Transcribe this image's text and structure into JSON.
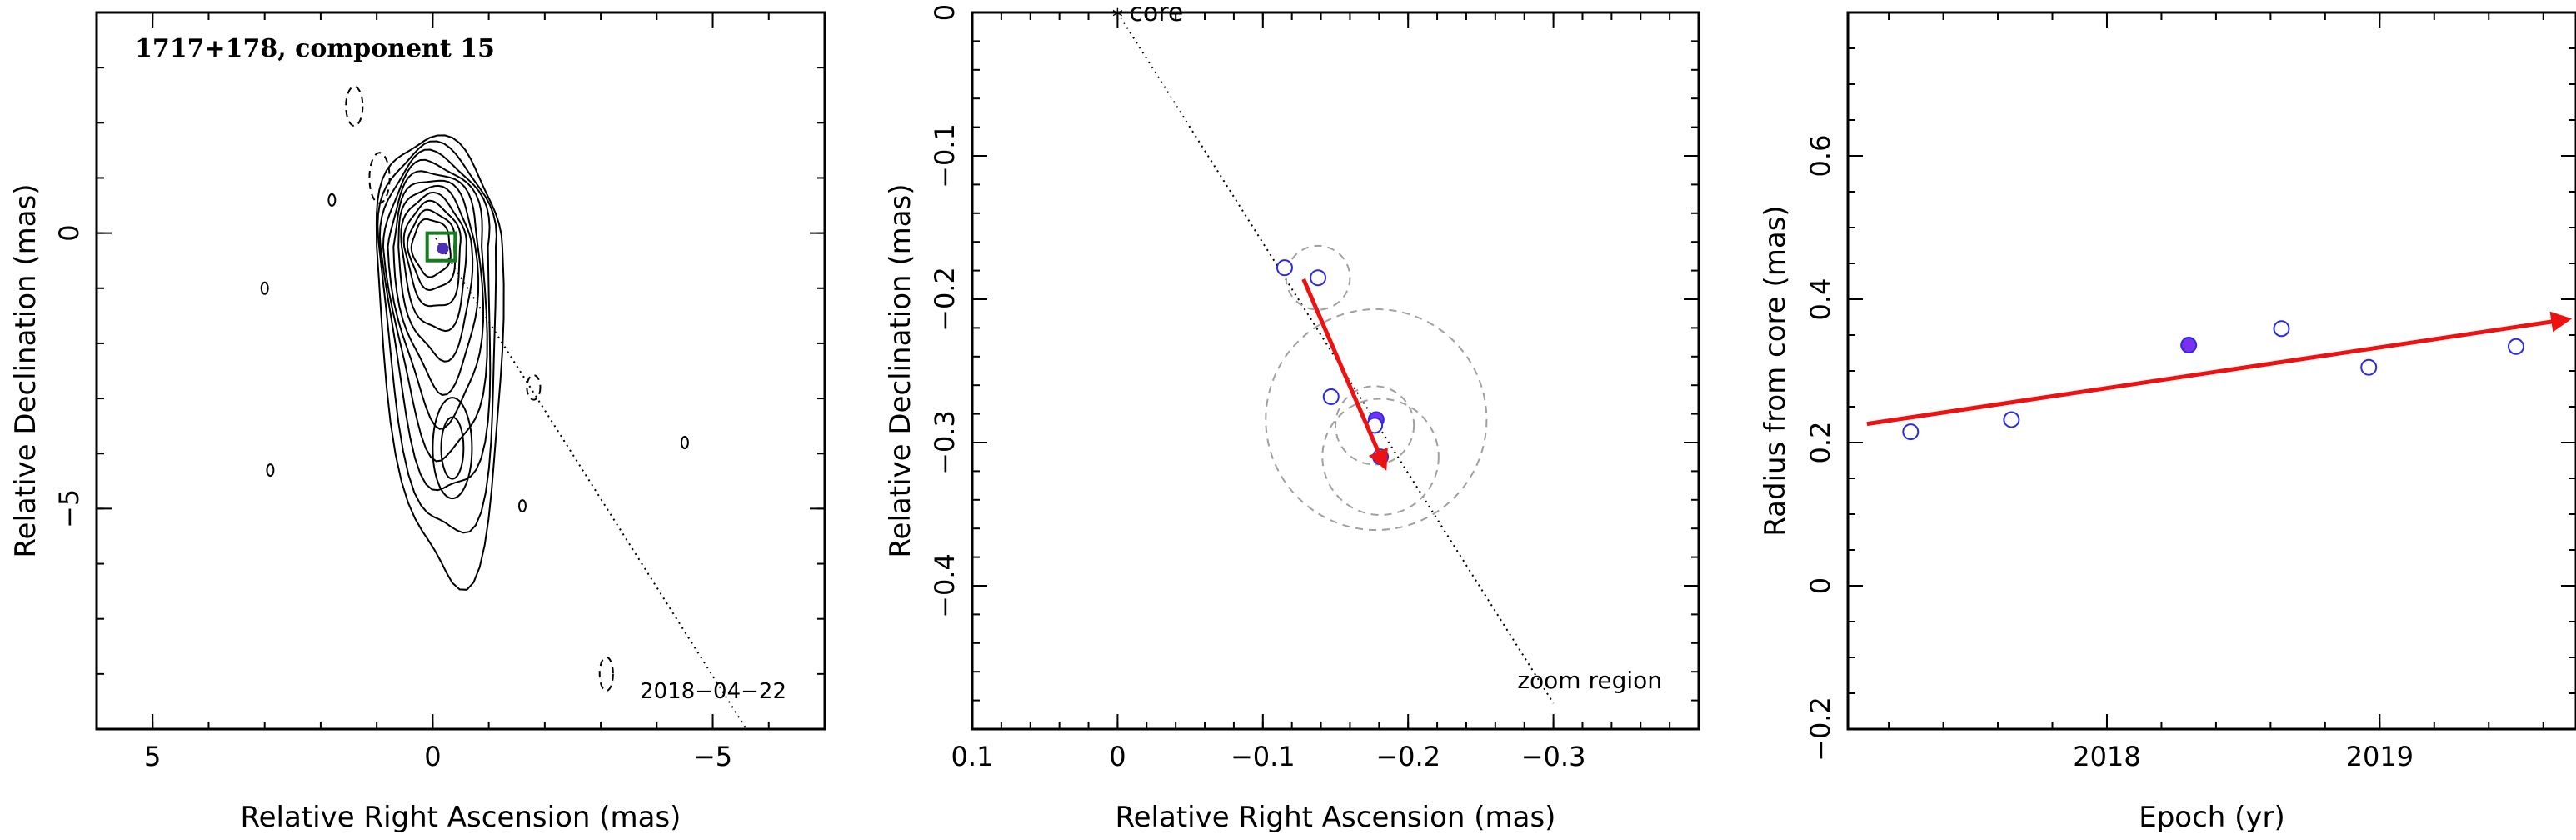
{
  "chart_data": [
    {
      "type": "contour",
      "title": "1717+178, component 15",
      "xlabel": "Relative Right Ascension (mas)",
      "ylabel": "Relative Declination (mas)",
      "xlim": [
        6,
        -7
      ],
      "ylim": [
        -9,
        4
      ],
      "xticks": [
        5,
        0,
        -5
      ],
      "yticks": [
        0,
        -5
      ],
      "xtick_labels": [
        "5",
        "0",
        "−5"
      ],
      "ytick_labels": [
        "0",
        "−5"
      ],
      "date_label": "2018−04−22",
      "component_marker": {
        "x": -0.18,
        "y": -0.28
      },
      "zoom_box": {
        "x": [
          -0.4,
          0.1
        ],
        "y": [
          -0.5,
          0.0
        ]
      },
      "trajectory_line": {
        "from": [
          0,
          0
        ],
        "to": [
          -5.6,
          -9
        ]
      },
      "colors": {
        "contour": "#000000",
        "box": "#137c1c",
        "marker": "#4b2fb8"
      }
    },
    {
      "type": "scatter",
      "xlabel": "Relative Right Ascension (mas)",
      "ylabel": "Relative Declination (mas)",
      "xlim": [
        0.1,
        -0.4
      ],
      "ylim": [
        -0.5,
        0.0
      ],
      "xticks": [
        0.1,
        0,
        -0.1,
        -0.2,
        -0.3
      ],
      "xtick_labels": [
        "0.1",
        "0",
        "−0.1",
        "−0.2",
        "−0.3"
      ],
      "yticks": [
        0,
        -0.1,
        -0.2,
        -0.3,
        -0.4
      ],
      "ytick_labels": [
        "0",
        "−0.1",
        "−0.2",
        "−0.3",
        "−0.4"
      ],
      "core_label": "core",
      "region_label": "zoom region",
      "points": [
        {
          "x": -0.115,
          "y": -0.178,
          "r": 0.0,
          "filled": false
        },
        {
          "x": -0.138,
          "y": -0.185,
          "r": 0.022,
          "filled": false
        },
        {
          "x": -0.147,
          "y": -0.268,
          "r": 0.0,
          "filled": false
        },
        {
          "x": -0.178,
          "y": -0.284,
          "r": 0.076,
          "filled": true
        },
        {
          "x": -0.177,
          "y": -0.288,
          "r": 0.027,
          "filled": false
        },
        {
          "x": -0.181,
          "y": -0.31,
          "r": 0.04,
          "filled": false
        }
      ],
      "vector": {
        "from": [
          -0.128,
          -0.186
        ],
        "to": [
          -0.184,
          -0.317
        ]
      },
      "trajectory_line": {
        "from": [
          0,
          0
        ],
        "to": [
          -0.3,
          -0.482
        ]
      },
      "colors": {
        "point": "#2a2ae0",
        "filled": "#7b2ff0",
        "vector": "#ee1111",
        "circle": "#a0a0a0"
      }
    },
    {
      "type": "scatter",
      "xlabel": "Epoch (yr)",
      "ylabel": "Radius from core (mas)",
      "xlim": [
        2017.05,
        2019.72
      ],
      "ylim": [
        -0.2,
        0.8
      ],
      "xticks": [
        2018,
        2019
      ],
      "xtick_labels": [
        "2018",
        "2019"
      ],
      "yticks": [
        -0.2,
        0,
        0.2,
        0.4,
        0.6
      ],
      "ytick_labels": [
        "−0.2",
        "0",
        "0.2",
        "0.4",
        "0.6"
      ],
      "points": [
        {
          "x": 2017.28,
          "y": 0.215,
          "filled": false
        },
        {
          "x": 2017.65,
          "y": 0.232,
          "filled": false
        },
        {
          "x": 2018.3,
          "y": 0.336,
          "filled": true
        },
        {
          "x": 2018.64,
          "y": 0.359,
          "filled": false
        },
        {
          "x": 2018.96,
          "y": 0.305,
          "filled": false
        },
        {
          "x": 2019.5,
          "y": 0.334,
          "filled": false
        }
      ],
      "trend": {
        "from": [
          2017.12,
          0.226
        ],
        "to": [
          2019.69,
          0.372
        ]
      },
      "colors": {
        "point": "#2a2ae0",
        "filled": "#7b2ff0",
        "trend": "#ee1111"
      }
    }
  ]
}
